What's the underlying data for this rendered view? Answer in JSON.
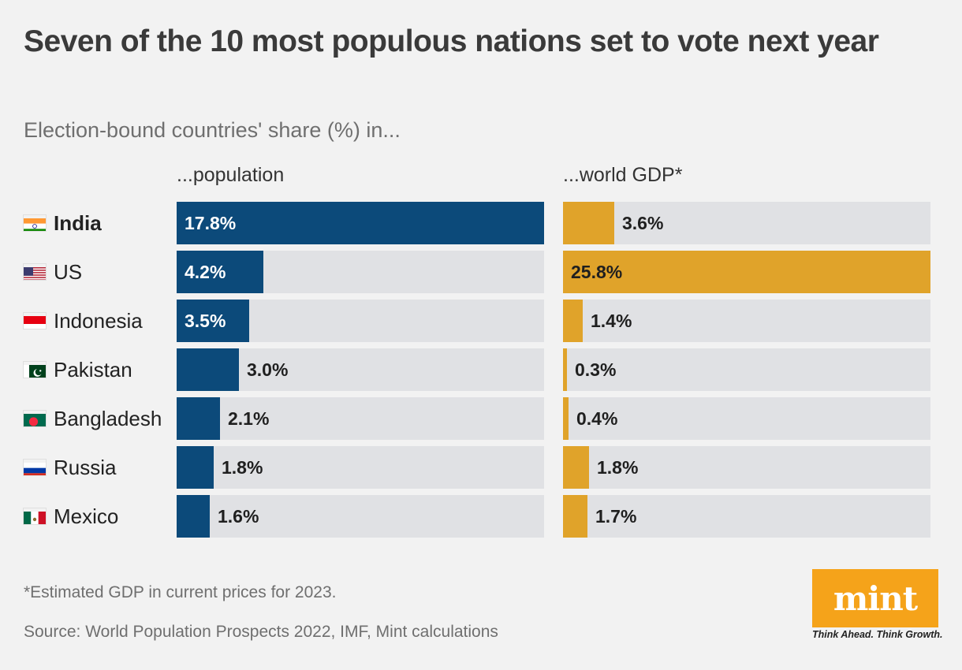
{
  "chart_data": {
    "type": "bar",
    "title": "Seven of the 10 most populous nations set to vote next year",
    "subtitle": "Election-bound countries' share (%) in...",
    "categories": [
      "India",
      "US",
      "Indonesia",
      "Pakistan",
      "Bangladesh",
      "Russia",
      "Mexico"
    ],
    "highlight": "India",
    "series": [
      {
        "name": "...population",
        "color": "#0c4a7a",
        "values": [
          17.8,
          4.2,
          3.5,
          3.0,
          2.1,
          1.8,
          1.6
        ],
        "labels": [
          "17.8%",
          "4.2%",
          "3.5%",
          "3.0%",
          "2.1%",
          "1.8%",
          "1.6%"
        ]
      },
      {
        "name": "...world GDP*",
        "color": "#e0a32a",
        "values": [
          3.6,
          25.8,
          1.4,
          0.3,
          0.4,
          1.8,
          1.7
        ],
        "labels": [
          "3.6%",
          "25.8%",
          "1.4%",
          "0.3%",
          "0.4%",
          "1.8%",
          "1.7%"
        ]
      }
    ],
    "footnote": "*Estimated GDP in current prices for 2023.",
    "source": "Source: World Population Prospects 2022, IMF, Mint calculations"
  },
  "flags": [
    "india-flag-icon",
    "us-flag-icon",
    "indonesia-flag-icon",
    "pakistan-flag-icon",
    "bangladesh-flag-icon",
    "russia-flag-icon",
    "mexico-flag-icon"
  ],
  "colors": {
    "track": "#e0e1e4",
    "background": "#f2f2f2",
    "brand": "#f5a31a"
  },
  "brand": {
    "name": "mint",
    "tagline": "Think Ahead. Think Growth."
  }
}
